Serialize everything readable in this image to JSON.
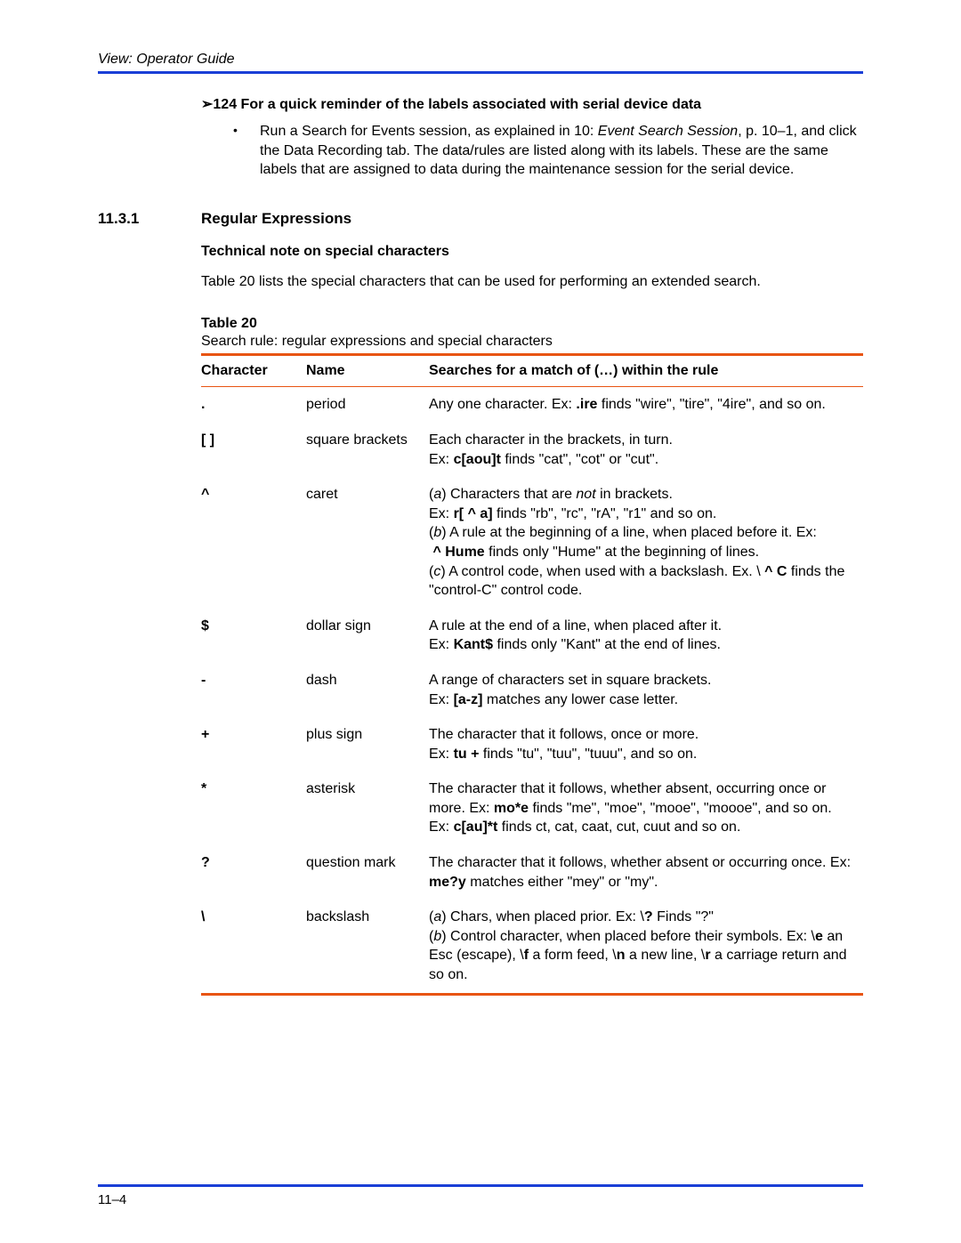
{
  "header": {
    "title": "View: Operator Guide"
  },
  "tip": {
    "heading": "➢124  For a quick reminder of the labels associated with serial device data",
    "bullet_html": "Run a Search for Events session, as explained in 10: <i>Event Search Session</i>, p. 10–1, and click the Data Recording tab. The data/rules are listed along with its labels. These are the same labels that are assigned to data during the maintenance session for the serial device."
  },
  "section": {
    "number": "11.3.1",
    "title": "Regular Expressions",
    "technote": "Technical note on special characters",
    "para": "Table 20 lists the special characters that can be used for performing an extended search.",
    "table_caption_bold": "Table 20",
    "table_caption": "Search rule: regular expressions and special characters"
  },
  "table": {
    "headers": {
      "c1": "Character",
      "c2": "Name",
      "c3": "Searches for a match of (…) within the rule"
    },
    "rows": [
      {
        "char": ".",
        "name": "period",
        "desc_html": "Any one character. Ex: <b>.ire</b> finds \"wire\", \"tire\", \"4ire\", and so on."
      },
      {
        "char": "[ ]",
        "name": "square brackets",
        "desc_html": "Each character in the brackets, in turn.<br>Ex: <b>c[aou]t</b> finds \"cat\", \"cot\" or \"cut\"."
      },
      {
        "char": "^",
        "name": "caret",
        "desc_html": "(<i>a</i>) Characters that are <i>not</i> in brackets.<br>Ex: <b>r[&nbsp;^&nbsp;a]</b> finds \"rb\", \"rc\", \"rA\", \"r1\" and so on.<br>(<i>b</i>) A rule at the beginning of a line, when placed before it. Ex: <b>&nbsp;^&nbsp;Hume</b> finds only \"Hume\" at the beginning of lines.<br>(<i>c</i>) A control code, when used with a backslash. Ex. \\<b>&nbsp;^&nbsp;C</b> finds the \"control-C\" control code."
      },
      {
        "char": "$",
        "name": "dollar sign",
        "desc_html": "A rule at the end of a line, when placed after it.<br>Ex: <b>Kant$</b> finds only \"Kant\" at the end of lines."
      },
      {
        "char": "-",
        "name": "dash",
        "desc_html": "A range of characters set in square brackets.<br>Ex: <b>[a-z]</b> matches any lower case letter."
      },
      {
        "char": "+",
        "name": "plus sign",
        "desc_html": "The character that it follows, once or more.<br>Ex: <b>tu&nbsp;+</b> finds \"tu\", \"tuu\", \"tuuu\", and so on."
      },
      {
        "char": "*",
        "name": "asterisk",
        "desc_html": "The character that it follows, whether absent, occurring once or more. Ex: <b>mo*e</b> finds \"me\", \"moe\", \"mooe\", \"moooe\", and so on.<br>Ex: <b>c[au]*t</b> finds ct, cat, caat, cut, cuut and so on."
      },
      {
        "char": "?",
        "name": "question mark",
        "desc_html": "The character that it follows, whether absent or occurring once. Ex: <b>me?y</b> matches either \"mey\" or \"my\"."
      },
      {
        "char": "\\",
        "name": "backslash",
        "desc_html": "(<i>a</i>) Chars, when placed prior. Ex: \\<b>?</b> Finds \"?\"<br>(<i>b</i>) Control character, when placed before their symbols. Ex: \\<b>e</b> an Esc (escape), \\<b>f</b> a form feed, \\<b>n</b> a new line, \\<b>r</b> a carriage return and so on."
      }
    ]
  },
  "footer": {
    "page": "11–4"
  },
  "colors": {
    "blue_rule": "#1a3fd6",
    "orange_rule": "#e85412"
  }
}
